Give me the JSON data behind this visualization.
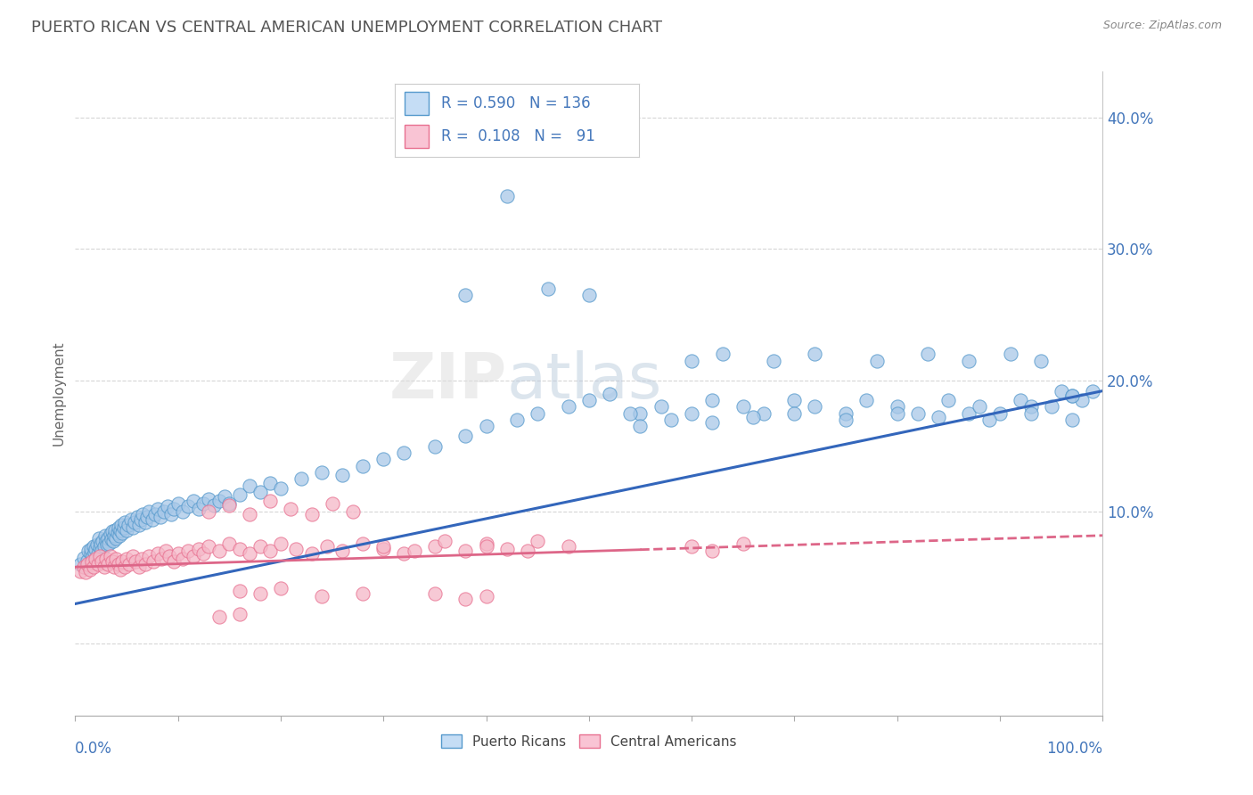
{
  "title": "PUERTO RICAN VS CENTRAL AMERICAN UNEMPLOYMENT CORRELATION CHART",
  "source": "Source: ZipAtlas.com",
  "ylabel": "Unemployment",
  "watermark_zip": "ZIP",
  "watermark_atlas": "atlas",
  "blue_R": 0.59,
  "blue_N": 136,
  "pink_R": 0.108,
  "pink_N": 91,
  "blue_color": "#A8C8E8",
  "blue_edge_color": "#5599CC",
  "blue_line_color": "#3366BB",
  "pink_color": "#F5B8C8",
  "pink_edge_color": "#E87090",
  "pink_line_color": "#DD6688",
  "blue_legend_fill": "#C5DDF5",
  "pink_legend_fill": "#F9C4D4",
  "legend_text_color": "#4477BB",
  "title_color": "#555555",
  "right_axis_color": "#4477BB",
  "ylabel_color": "#666666",
  "background_color": "#FFFFFF",
  "grid_color": "#CCCCCC",
  "blue_line_start_y": 0.03,
  "blue_line_end_y": 0.192,
  "pink_line_start_y": 0.058,
  "pink_line_end_y": 0.082,
  "xlim": [
    0.0,
    1.0
  ],
  "ylim": [
    -0.055,
    0.435
  ],
  "yticks": [
    0.0,
    0.1,
    0.2,
    0.3,
    0.4
  ],
  "ytick_labels": [
    "",
    "10.0%",
    "20.0%",
    "30.0%",
    "40.0%"
  ],
  "figsize": [
    14.06,
    8.92
  ],
  "dpi": 100,
  "blue_points_x": [
    0.005,
    0.008,
    0.01,
    0.012,
    0.013,
    0.015,
    0.015,
    0.017,
    0.018,
    0.019,
    0.02,
    0.021,
    0.022,
    0.023,
    0.024,
    0.025,
    0.026,
    0.027,
    0.028,
    0.029,
    0.03,
    0.031,
    0.032,
    0.033,
    0.034,
    0.035,
    0.036,
    0.037,
    0.038,
    0.039,
    0.04,
    0.041,
    0.042,
    0.043,
    0.044,
    0.045,
    0.046,
    0.047,
    0.048,
    0.05,
    0.052,
    0.054,
    0.056,
    0.058,
    0.06,
    0.062,
    0.064,
    0.066,
    0.068,
    0.07,
    0.072,
    0.075,
    0.078,
    0.08,
    0.083,
    0.086,
    0.09,
    0.093,
    0.096,
    0.1,
    0.105,
    0.11,
    0.115,
    0.12,
    0.125,
    0.13,
    0.135,
    0.14,
    0.145,
    0.15,
    0.16,
    0.17,
    0.18,
    0.19,
    0.2,
    0.22,
    0.24,
    0.26,
    0.28,
    0.3,
    0.32,
    0.35,
    0.38,
    0.4,
    0.43,
    0.45,
    0.48,
    0.5,
    0.52,
    0.55,
    0.57,
    0.6,
    0.62,
    0.65,
    0.67,
    0.7,
    0.72,
    0.75,
    0.77,
    0.8,
    0.82,
    0.85,
    0.87,
    0.88,
    0.9,
    0.92,
    0.93,
    0.95,
    0.96,
    0.97,
    0.98,
    0.99,
    0.6,
    0.63,
    0.68,
    0.72,
    0.78,
    0.83,
    0.87,
    0.91,
    0.94,
    0.97,
    0.55,
    0.58,
    0.62,
    0.66,
    0.7,
    0.75,
    0.8,
    0.84,
    0.89,
    0.93,
    0.97,
    0.38,
    0.42,
    0.46,
    0.5,
    0.54
  ],
  "blue_points_y": [
    0.06,
    0.065,
    0.058,
    0.063,
    0.07,
    0.068,
    0.072,
    0.066,
    0.074,
    0.069,
    0.072,
    0.075,
    0.068,
    0.08,
    0.073,
    0.076,
    0.07,
    0.078,
    0.074,
    0.082,
    0.078,
    0.075,
    0.08,
    0.076,
    0.083,
    0.079,
    0.085,
    0.078,
    0.082,
    0.086,
    0.08,
    0.084,
    0.088,
    0.082,
    0.086,
    0.09,
    0.084,
    0.088,
    0.092,
    0.086,
    0.09,
    0.094,
    0.088,
    0.092,
    0.096,
    0.09,
    0.094,
    0.098,
    0.092,
    0.096,
    0.1,
    0.094,
    0.098,
    0.102,
    0.096,
    0.1,
    0.104,
    0.098,
    0.102,
    0.106,
    0.1,
    0.104,
    0.108,
    0.102,
    0.106,
    0.11,
    0.105,
    0.108,
    0.112,
    0.106,
    0.113,
    0.12,
    0.115,
    0.122,
    0.118,
    0.125,
    0.13,
    0.128,
    0.135,
    0.14,
    0.145,
    0.15,
    0.158,
    0.165,
    0.17,
    0.175,
    0.18,
    0.185,
    0.19,
    0.175,
    0.18,
    0.175,
    0.185,
    0.18,
    0.175,
    0.185,
    0.18,
    0.175,
    0.185,
    0.18,
    0.175,
    0.185,
    0.175,
    0.18,
    0.175,
    0.185,
    0.18,
    0.18,
    0.192,
    0.188,
    0.185,
    0.192,
    0.215,
    0.22,
    0.215,
    0.22,
    0.215,
    0.22,
    0.215,
    0.22,
    0.215,
    0.188,
    0.165,
    0.17,
    0.168,
    0.172,
    0.175,
    0.17,
    0.175,
    0.172,
    0.17,
    0.175,
    0.17,
    0.265,
    0.34,
    0.27,
    0.265,
    0.175
  ],
  "pink_points_x": [
    0.005,
    0.008,
    0.01,
    0.012,
    0.014,
    0.016,
    0.018,
    0.02,
    0.022,
    0.024,
    0.026,
    0.028,
    0.03,
    0.032,
    0.034,
    0.036,
    0.038,
    0.04,
    0.042,
    0.044,
    0.046,
    0.048,
    0.05,
    0.053,
    0.056,
    0.059,
    0.062,
    0.065,
    0.068,
    0.072,
    0.076,
    0.08,
    0.084,
    0.088,
    0.092,
    0.096,
    0.1,
    0.105,
    0.11,
    0.115,
    0.12,
    0.125,
    0.13,
    0.14,
    0.15,
    0.16,
    0.17,
    0.18,
    0.19,
    0.2,
    0.215,
    0.23,
    0.245,
    0.26,
    0.28,
    0.3,
    0.32,
    0.35,
    0.38,
    0.13,
    0.15,
    0.17,
    0.19,
    0.21,
    0.23,
    0.25,
    0.27,
    0.4,
    0.42,
    0.45,
    0.48,
    0.6,
    0.62,
    0.65,
    0.16,
    0.18,
    0.2,
    0.24,
    0.28,
    0.3,
    0.33,
    0.36,
    0.4,
    0.44,
    0.35,
    0.38,
    0.4,
    0.14,
    0.16
  ],
  "pink_points_y": [
    0.055,
    0.058,
    0.054,
    0.06,
    0.056,
    0.062,
    0.058,
    0.064,
    0.06,
    0.066,
    0.062,
    0.058,
    0.064,
    0.06,
    0.066,
    0.062,
    0.058,
    0.064,
    0.06,
    0.056,
    0.062,
    0.058,
    0.064,
    0.06,
    0.066,
    0.062,
    0.058,
    0.064,
    0.06,
    0.066,
    0.062,
    0.068,
    0.064,
    0.07,
    0.066,
    0.062,
    0.068,
    0.064,
    0.07,
    0.066,
    0.072,
    0.068,
    0.074,
    0.07,
    0.076,
    0.072,
    0.068,
    0.074,
    0.07,
    0.076,
    0.072,
    0.068,
    0.074,
    0.07,
    0.076,
    0.072,
    0.068,
    0.074,
    0.07,
    0.1,
    0.105,
    0.098,
    0.108,
    0.102,
    0.098,
    0.106,
    0.1,
    0.076,
    0.072,
    0.078,
    0.074,
    0.074,
    0.07,
    0.076,
    0.04,
    0.038,
    0.042,
    0.036,
    0.038,
    0.074,
    0.07,
    0.078,
    0.074,
    0.07,
    0.038,
    0.034,
    0.036,
    0.02,
    0.022
  ]
}
